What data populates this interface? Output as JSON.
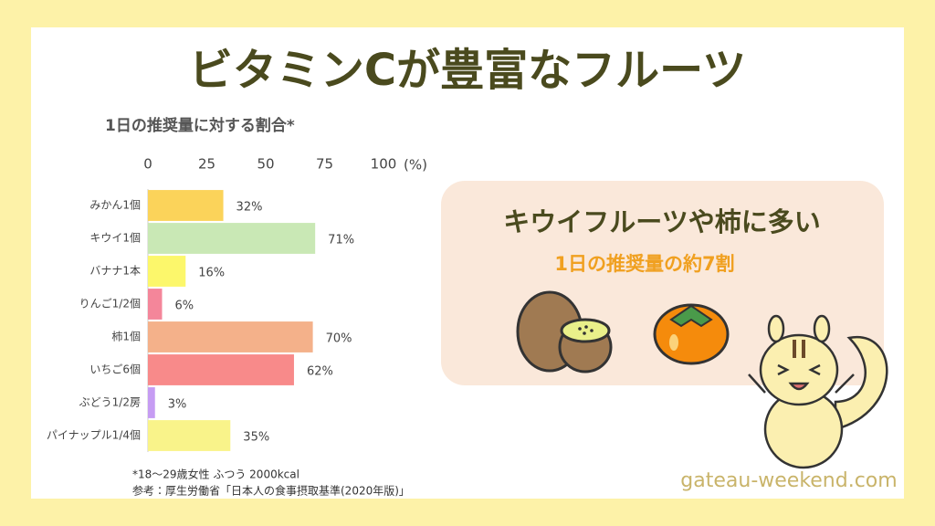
{
  "chart_data": {
    "type": "hbar",
    "title": "ビタミンCが豊富なフルーツ",
    "subtitle": "1日の推奨量に対する割合*",
    "categories": [
      "みかん1個",
      "キウイ1個",
      "バナナ1本",
      "りんご1/2個",
      "柿1個",
      "いちご6個",
      "ぶどう1/2房",
      "パイナップル1/4個"
    ],
    "values": [
      32,
      71,
      16,
      6,
      70,
      62,
      3,
      35
    ],
    "value_labels": [
      "32%",
      "71%",
      "16%",
      "6%",
      "70%",
      "62%",
      "3%",
      "35%"
    ],
    "colors": [
      "#fbd35a",
      "#c9e8b5",
      "#fcf76b",
      "#f4869a",
      "#f4b18a",
      "#f88a8a",
      "#c69cf3",
      "#f9f38a"
    ],
    "xlim": [
      0,
      100
    ],
    "xticks": [
      0,
      25,
      50,
      75,
      100
    ],
    "xlabel": "(%)",
    "grid": false
  },
  "callout": {
    "headline": "キウイフルーツや柿に多い",
    "subline": "1日の推奨量の約7割"
  },
  "footnotes": [
    "*18～29歳女性 ふつう 2000kcal",
    "参考：厚生労働省「日本人の食事摂取基準(2020年版)」"
  ],
  "site": "gateau-weekend.com"
}
